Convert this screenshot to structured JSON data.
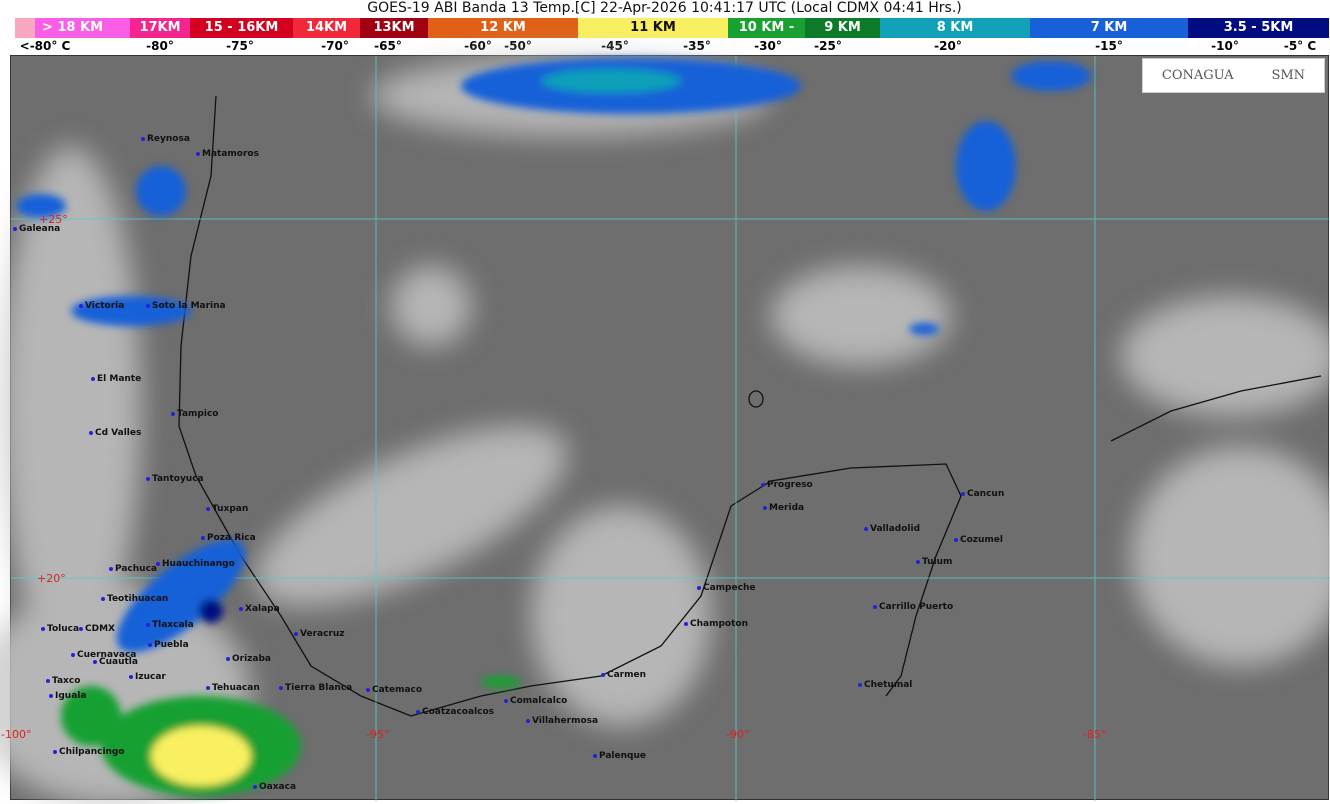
{
  "title": "GOES-19 ABI Banda 13 Temp.[C] 22-Apr-2026 10:41:17 UTC (Local CDMX  04:41 Hrs.)",
  "legend": [
    {
      "label": "> 18 KM",
      "color": "#fb5ee6"
    },
    {
      "label": "17KM",
      "color": "#f5258f"
    },
    {
      "label": "15 - 16KM",
      "color": "#d40020"
    },
    {
      "label": "14KM",
      "color": "#f0283a"
    },
    {
      "label": "13KM",
      "color": "#a00010"
    },
    {
      "label": "12 KM",
      "color": "#e06018"
    },
    {
      "label": "11 KM",
      "color": "#f8f060"
    },
    {
      "label": "10 KM -",
      "color": "#18a030"
    },
    {
      "label": "9 KM",
      "color": "#0c7a28"
    },
    {
      "label": "8 KM",
      "color": "#10a0b8"
    },
    {
      "label": "7 KM",
      "color": "#1860d8"
    },
    {
      "label": "3.5 - 5KM",
      "color": "#000c80"
    }
  ],
  "temperatures": [
    "<-80° C",
    "-80°",
    "-75°",
    "-70°",
    "-65°",
    "-60°",
    "-50°",
    "-45°",
    "-35°",
    "-30°",
    "-25°",
    "-20°",
    "-15°",
    "-10°",
    "-5°  C"
  ],
  "grid_labels": {
    "lat": [
      "+25°",
      "+20°"
    ],
    "lon": [
      "-100°",
      "-95°",
      "-90°",
      "-85°"
    ]
  },
  "logos": {
    "conagua": "CONAGUA",
    "smn": "SMN"
  },
  "cities": [
    "Reynosa",
    "Matamoros",
    "Galeana",
    "Victoria",
    "Soto la Marina",
    "El Mante",
    "Tampico",
    "Cd Valles",
    "Tantoyuca",
    "Tuxpan",
    "Poza Rica",
    "Huauchinango",
    "Pachuca",
    "Teotihuacan",
    "Xalapa",
    "Toluca",
    "CDMX",
    "Tlaxcala",
    "Veracruz",
    "Puebla",
    "Cuernavaca",
    "Cuautla",
    "Orizaba",
    "Izucar",
    "Taxco",
    "Iguala",
    "Tehuacan",
    "Tierra Blanca",
    "Catemaco",
    "Coatzacoalcos",
    "Comalcalco",
    "Villahermosa",
    "Chilpancingo",
    "Oaxaca",
    "Carmen",
    "Champoton",
    "Campeche",
    "Palenque",
    "Chetumal",
    "Progreso",
    "Merida",
    "Valladolid",
    "Cancun",
    "Cozumel",
    "Tulum",
    "Carrillo Puerto"
  ]
}
